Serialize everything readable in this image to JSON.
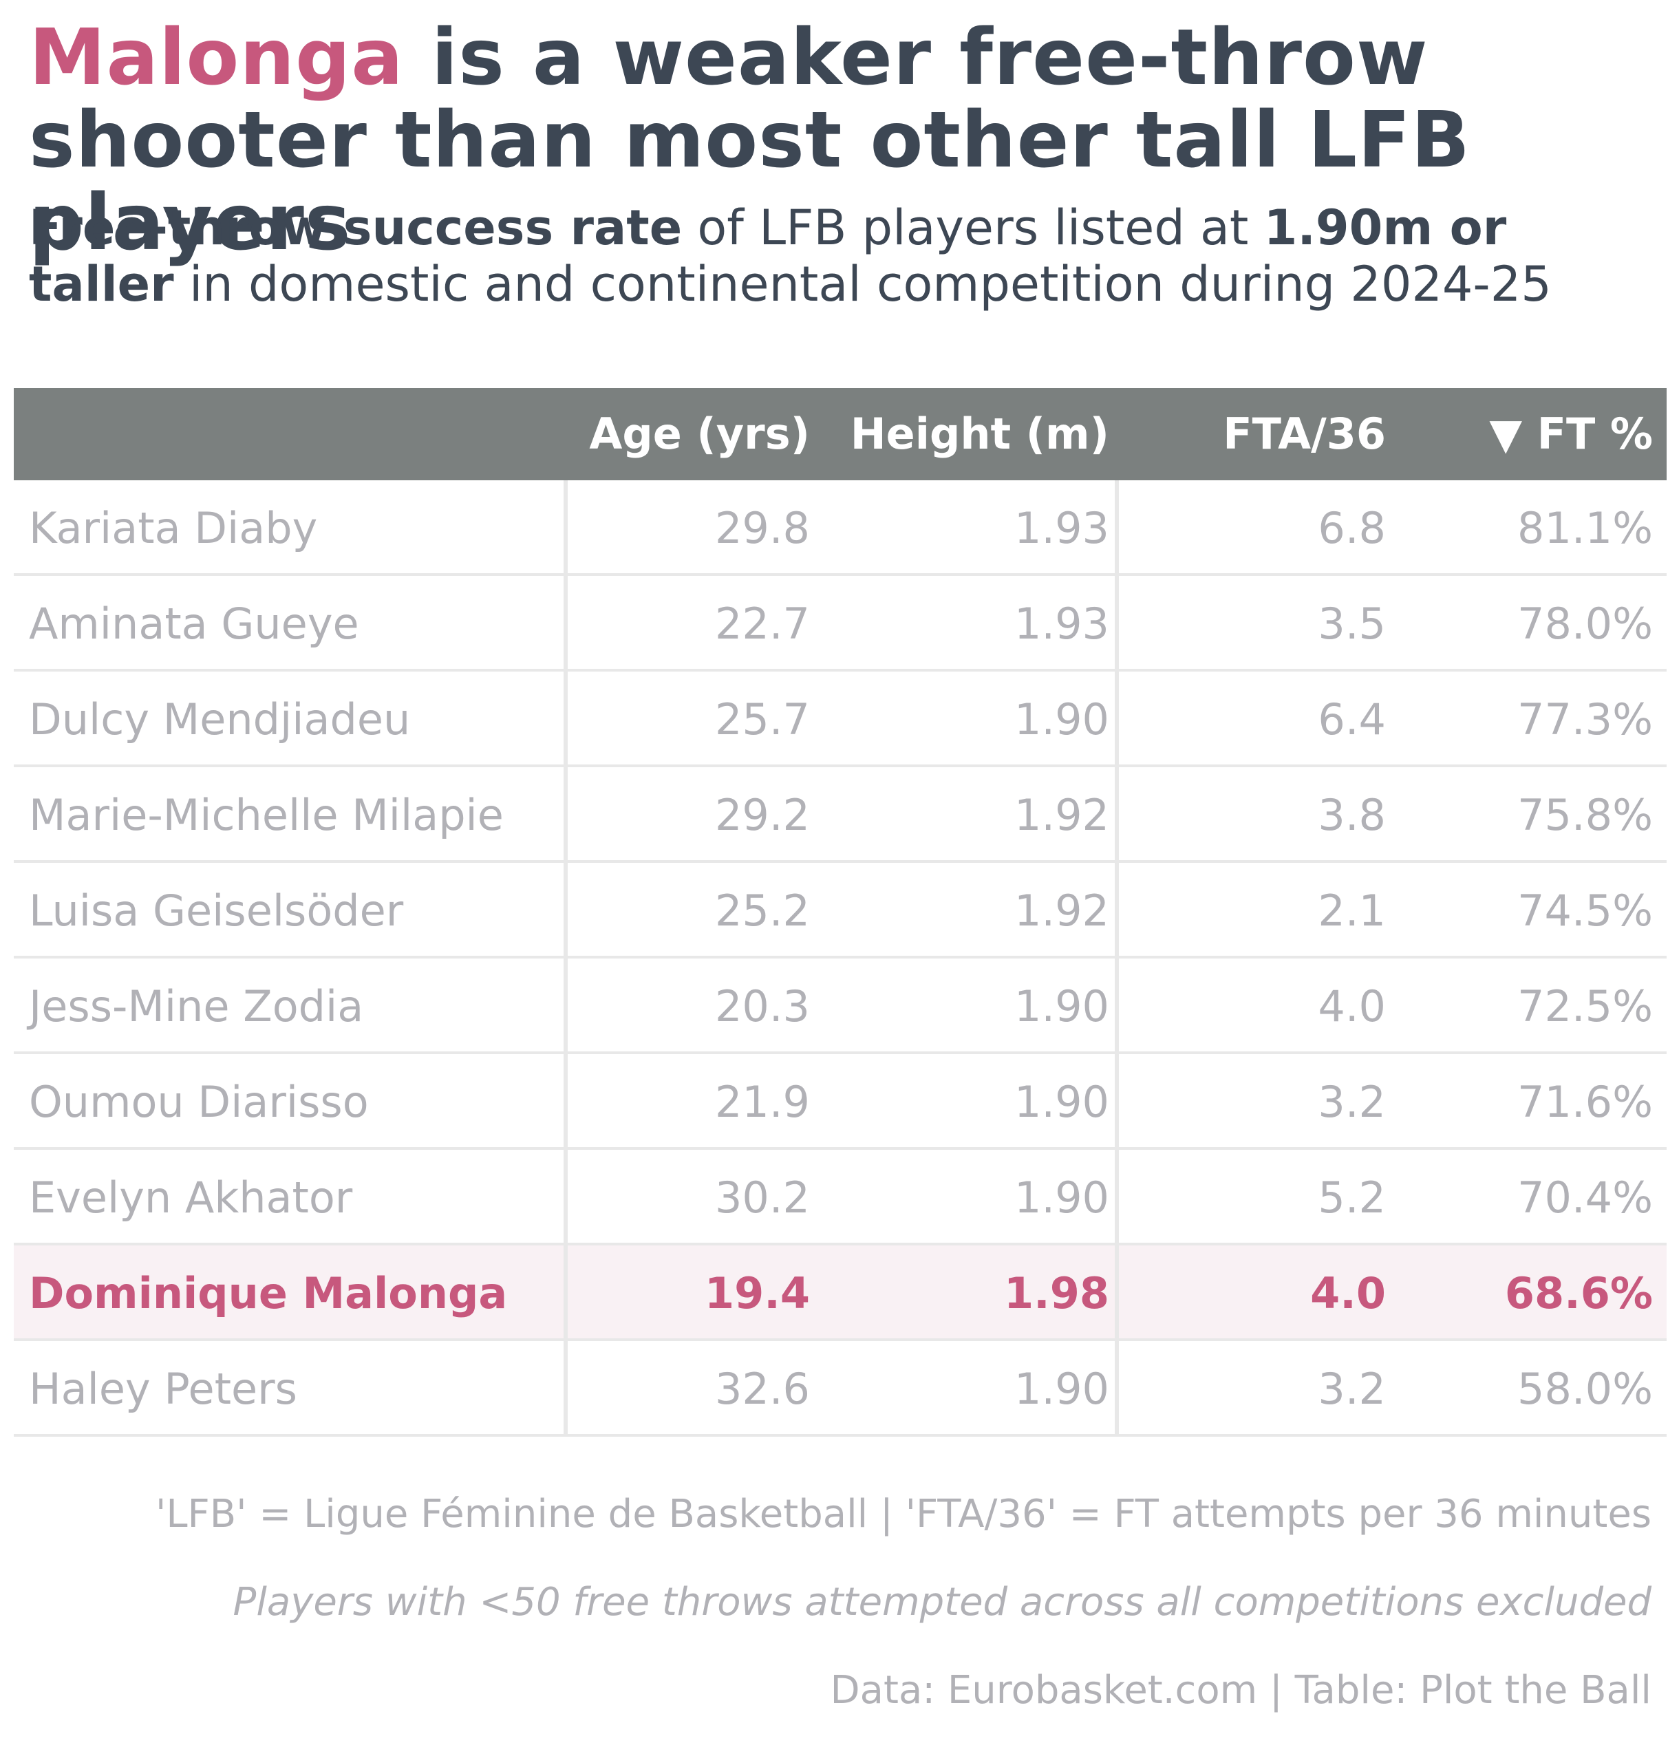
{
  "title": {
    "accent": "Malonga",
    "rest": " is a weaker free-throw shooter than most other tall LFB players"
  },
  "subtitle": {
    "bold1": "Free-throw success rate",
    "text1": " of LFB players listed at ",
    "bold2": "1.90m or taller",
    "text2": " in domestic and continental competition during 2024-25"
  },
  "colors": {
    "accent": "#c7587d",
    "header_bg": "#7b807f",
    "highlight_bg": "#f9f1f4",
    "muted_text": "#b1b1b6",
    "title_text": "#3d4754"
  },
  "chart_data": {
    "type": "table",
    "columns": [
      "",
      "Age (yrs)",
      "Height (m)",
      "FTA/36",
      "▼ FT %"
    ],
    "sort_column": "FT %",
    "sort_order": "descending",
    "highlight_row": "Dominique Malonga",
    "rows": [
      [
        "Kariata Diaby",
        "29.8",
        "1.93",
        "6.8",
        "81.1%"
      ],
      [
        "Aminata Gueye",
        "22.7",
        "1.93",
        "3.5",
        "78.0%"
      ],
      [
        "Dulcy Mendjiadeu",
        "25.7",
        "1.90",
        "6.4",
        "77.3%"
      ],
      [
        "Marie-Michelle Milapie",
        "29.2",
        "1.92",
        "3.8",
        "75.8%"
      ],
      [
        "Luisa Geiselsöder",
        "25.2",
        "1.92",
        "2.1",
        "74.5%"
      ],
      [
        "Jess-Mine Zodia",
        "20.3",
        "1.90",
        "4.0",
        "72.5%"
      ],
      [
        "Oumou Diarisso",
        "21.9",
        "1.90",
        "3.2",
        "71.6%"
      ],
      [
        "Evelyn Akhator",
        "30.2",
        "1.90",
        "5.2",
        "70.4%"
      ],
      [
        "Dominique Malonga",
        "19.4",
        "1.98",
        "4.0",
        "68.6%"
      ],
      [
        "Haley Peters",
        "32.6",
        "1.90",
        "3.2",
        "58.0%"
      ]
    ]
  },
  "footnotes": {
    "line1": "'LFB' = Ligue Féminine de Basketball | 'FTA/36' = FT attempts per 36 minutes",
    "line2": "Players with <50 free throws attempted across all competitions excluded",
    "line3": "Data: Eurobasket.com | Table: Plot the Ball"
  }
}
